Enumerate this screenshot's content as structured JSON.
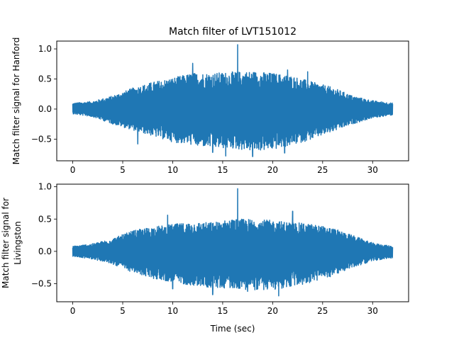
{
  "chart_data": [
    {
      "type": "line",
      "title": "Match filter of LVT151012",
      "xlabel": "",
      "ylabel": "Match filter signal for Hanford",
      "xlim": [
        -1.6,
        33.6
      ],
      "ylim": [
        -0.86,
        1.13
      ],
      "xticks": [
        0,
        5,
        10,
        15,
        20,
        25,
        30
      ],
      "yticks": [
        -0.5,
        0.0,
        0.5,
        1.0
      ],
      "xtick_labels": [
        "0",
        "5",
        "10",
        "15",
        "20",
        "25",
        "30"
      ],
      "ytick_labels": [
        "−0.5",
        "0.0",
        "0.5",
        "1.0"
      ],
      "grid": false,
      "series": [
        {
          "color": "#1f77b4",
          "x_range": [
            0,
            32
          ],
          "envelope_x": [
            0,
            2,
            4,
            6,
            8,
            10,
            12,
            14,
            16,
            18,
            20,
            22,
            24,
            26,
            28,
            30,
            32
          ],
          "envelope_upper": [
            0.1,
            0.13,
            0.22,
            0.35,
            0.45,
            0.52,
            0.6,
            0.6,
            0.62,
            0.63,
            0.6,
            0.55,
            0.45,
            0.36,
            0.22,
            0.14,
            0.1
          ],
          "envelope_lower": [
            -0.08,
            -0.13,
            -0.25,
            -0.35,
            -0.45,
            -0.55,
            -0.6,
            -0.65,
            -0.66,
            -0.7,
            -0.68,
            -0.6,
            -0.5,
            -0.38,
            -0.25,
            -0.15,
            -0.1
          ],
          "peaks": [
            [
              16.5,
              1.07
            ],
            [
              12.0,
              0.76
            ],
            [
              12.5,
              -0.6
            ],
            [
              21.2,
              -0.73
            ],
            [
              14.0,
              -0.72
            ],
            [
              15.3,
              -0.78
            ],
            [
              18.0,
              -0.79
            ],
            [
              21.5,
              0.65
            ],
            [
              6.5,
              -0.58
            ],
            [
              23.5,
              0.62
            ]
          ]
        }
      ]
    },
    {
      "type": "line",
      "title": "",
      "xlabel": "Time (sec)",
      "ylabel": "Match filter signal for Livingston",
      "xlim": [
        -1.6,
        33.6
      ],
      "ylim": [
        -0.78,
        1.04
      ],
      "xticks": [
        0,
        5,
        10,
        15,
        20,
        25,
        30
      ],
      "yticks": [
        -0.5,
        0.0,
        0.5,
        1.0
      ],
      "xtick_labels": [
        "0",
        "5",
        "10",
        "15",
        "20",
        "25",
        "30"
      ],
      "ytick_labels": [
        "−0.5",
        "0.0",
        "0.5",
        "1.0"
      ],
      "grid": false,
      "series": [
        {
          "color": "#1f77b4",
          "x_range": [
            0,
            32
          ],
          "envelope_x": [
            0,
            2,
            4,
            6,
            8,
            10,
            12,
            14,
            16,
            18,
            20,
            22,
            24,
            26,
            28,
            30,
            32
          ],
          "envelope_upper": [
            0.08,
            0.12,
            0.2,
            0.32,
            0.38,
            0.42,
            0.45,
            0.45,
            0.5,
            0.5,
            0.48,
            0.45,
            0.42,
            0.36,
            0.25,
            0.13,
            0.08
          ],
          "envelope_lower": [
            -0.08,
            -0.12,
            -0.2,
            -0.33,
            -0.42,
            -0.48,
            -0.53,
            -0.57,
            -0.57,
            -0.6,
            -0.6,
            -0.55,
            -0.48,
            -0.38,
            -0.25,
            -0.15,
            -0.1
          ],
          "peaks": [
            [
              16.5,
              0.97
            ],
            [
              14.0,
              -0.67
            ],
            [
              20.6,
              -0.69
            ],
            [
              22.0,
              0.62
            ],
            [
              10.0,
              -0.58
            ],
            [
              17.5,
              -0.62
            ],
            [
              9.5,
              0.56
            ]
          ]
        }
      ]
    }
  ]
}
